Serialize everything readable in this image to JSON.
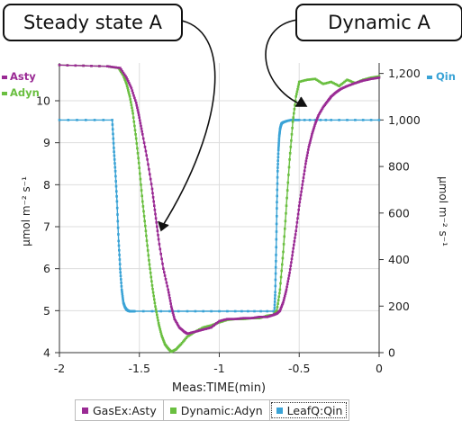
{
  "callouts": {
    "left": "Steady state A",
    "right": "Dynamic A"
  },
  "legend": [
    {
      "label": "GasEx:Asty",
      "color": "#9a2a94"
    },
    {
      "label": "Dynamic:Adyn",
      "color": "#6abf40"
    },
    {
      "label": "LeafQ:Qin",
      "color": "#3aa3d6"
    }
  ],
  "colors": {
    "asty": "#9a2a94",
    "adyn": "#6abf40",
    "qin": "#3aa3d6",
    "grid": "#dddddd"
  },
  "chart_data": {
    "type": "line",
    "xlabel": "Meas:TIME(min)",
    "ylabel_left": "µmol m⁻² s⁻¹",
    "ylabel_right": "µmol m⁻² s⁻¹",
    "xlim": [
      -2,
      0
    ],
    "ylim_left": [
      4,
      10.9
    ],
    "ylim_right": [
      0,
      1245
    ],
    "x_ticks": [
      -2,
      -1.5,
      -1,
      -0.5,
      0
    ],
    "x_tick_labels": [
      "-2",
      "-1.5",
      "-1",
      "-0.5",
      "0"
    ],
    "y_left_ticks": [
      4,
      5,
      6,
      7,
      8,
      9,
      10
    ],
    "y_right_ticks": [
      0,
      200,
      400,
      600,
      800,
      1000,
      1200
    ],
    "y_right_tick_labels": [
      "0",
      "200",
      "400",
      "600",
      "800",
      "1,000",
      "1,200"
    ],
    "grid": true,
    "legend_left": [
      "Asty",
      "Adyn"
    ],
    "legend_right": [
      "Qin"
    ],
    "series": [
      {
        "name": "Asty",
        "axis": "left",
        "x": [
          -2.0,
          -1.7,
          -1.62,
          -1.58,
          -1.55,
          -1.52,
          -1.5,
          -1.48,
          -1.45,
          -1.42,
          -1.4,
          -1.38,
          -1.35,
          -1.32,
          -1.3,
          -1.28,
          -1.25,
          -1.22,
          -1.2,
          -1.15,
          -1.1,
          -1.05,
          -1.0,
          -0.95,
          -0.9,
          -0.85,
          -0.8,
          -0.75,
          -0.7,
          -0.66,
          -0.64,
          -0.62,
          -0.6,
          -0.58,
          -0.56,
          -0.54,
          -0.52,
          -0.5,
          -0.48,
          -0.46,
          -0.44,
          -0.42,
          -0.4,
          -0.38,
          -0.35,
          -0.32,
          -0.3,
          -0.27,
          -0.24,
          -0.2,
          -0.15,
          -0.1,
          -0.05,
          0.0
        ],
        "y": [
          10.85,
          10.82,
          10.78,
          10.55,
          10.3,
          9.95,
          9.6,
          9.2,
          8.6,
          7.9,
          7.3,
          6.7,
          6.0,
          5.5,
          5.1,
          4.8,
          4.6,
          4.5,
          4.45,
          4.5,
          4.55,
          4.6,
          4.75,
          4.8,
          4.8,
          4.82,
          4.82,
          4.85,
          4.85,
          4.9,
          4.93,
          5.0,
          5.2,
          5.5,
          5.9,
          6.4,
          6.9,
          7.5,
          8.0,
          8.5,
          8.9,
          9.2,
          9.45,
          9.65,
          9.85,
          10.0,
          10.1,
          10.2,
          10.28,
          10.35,
          10.42,
          10.48,
          10.52,
          10.55
        ]
      },
      {
        "name": "Adyn",
        "axis": "left",
        "x": [
          -2.0,
          -1.7,
          -1.63,
          -1.6,
          -1.58,
          -1.56,
          -1.54,
          -1.52,
          -1.5,
          -1.48,
          -1.46,
          -1.44,
          -1.42,
          -1.4,
          -1.38,
          -1.36,
          -1.34,
          -1.32,
          -1.3,
          -1.27,
          -1.24,
          -1.2,
          -1.15,
          -1.1,
          -1.05,
          -1.0,
          -0.95,
          -0.9,
          -0.85,
          -0.8,
          -0.75,
          -0.7,
          -0.66,
          -0.64,
          -0.62,
          -0.6,
          -0.58,
          -0.56,
          -0.54,
          -0.52,
          -0.5,
          -0.45,
          -0.4,
          -0.35,
          -0.3,
          -0.25,
          -0.2,
          -0.15,
          -0.1,
          -0.05,
          0.0
        ],
        "y": [
          10.85,
          10.82,
          10.78,
          10.6,
          10.4,
          10.1,
          9.7,
          9.1,
          8.4,
          7.6,
          6.9,
          6.2,
          5.6,
          5.1,
          4.7,
          4.4,
          4.2,
          4.1,
          4.02,
          4.08,
          4.2,
          4.38,
          4.5,
          4.6,
          4.65,
          4.72,
          4.78,
          4.8,
          4.8,
          4.82,
          4.82,
          4.88,
          4.9,
          5.0,
          5.5,
          6.4,
          7.5,
          8.6,
          9.5,
          10.1,
          10.45,
          10.5,
          10.52,
          10.4,
          10.45,
          10.35,
          10.5,
          10.42,
          10.5,
          10.55,
          10.58
        ]
      },
      {
        "name": "Qin",
        "axis": "right",
        "x": [
          -2.0,
          -1.67,
          -1.66,
          -1.65,
          -1.64,
          -1.63,
          -1.62,
          -1.61,
          -1.6,
          -1.59,
          -1.58,
          -1.57,
          -1.56,
          -1.55,
          -1.53,
          -1.2,
          -0.9,
          -0.66,
          -0.655,
          -0.65,
          -0.645,
          -0.64,
          -0.635,
          -0.63,
          -0.625,
          -0.62,
          -0.615,
          -0.61,
          -0.6,
          -0.58,
          -0.55,
          -0.5,
          -0.3,
          0.0
        ],
        "y": [
          1000,
          1000,
          880,
          780,
          650,
          480,
          360,
          270,
          215,
          195,
          185,
          180,
          178,
          178,
          178,
          178,
          178,
          178,
          178,
          260,
          420,
          620,
          780,
          870,
          930,
          960,
          975,
          985,
          990,
          995,
          1000,
          1000,
          1000,
          1000
        ]
      }
    ]
  }
}
